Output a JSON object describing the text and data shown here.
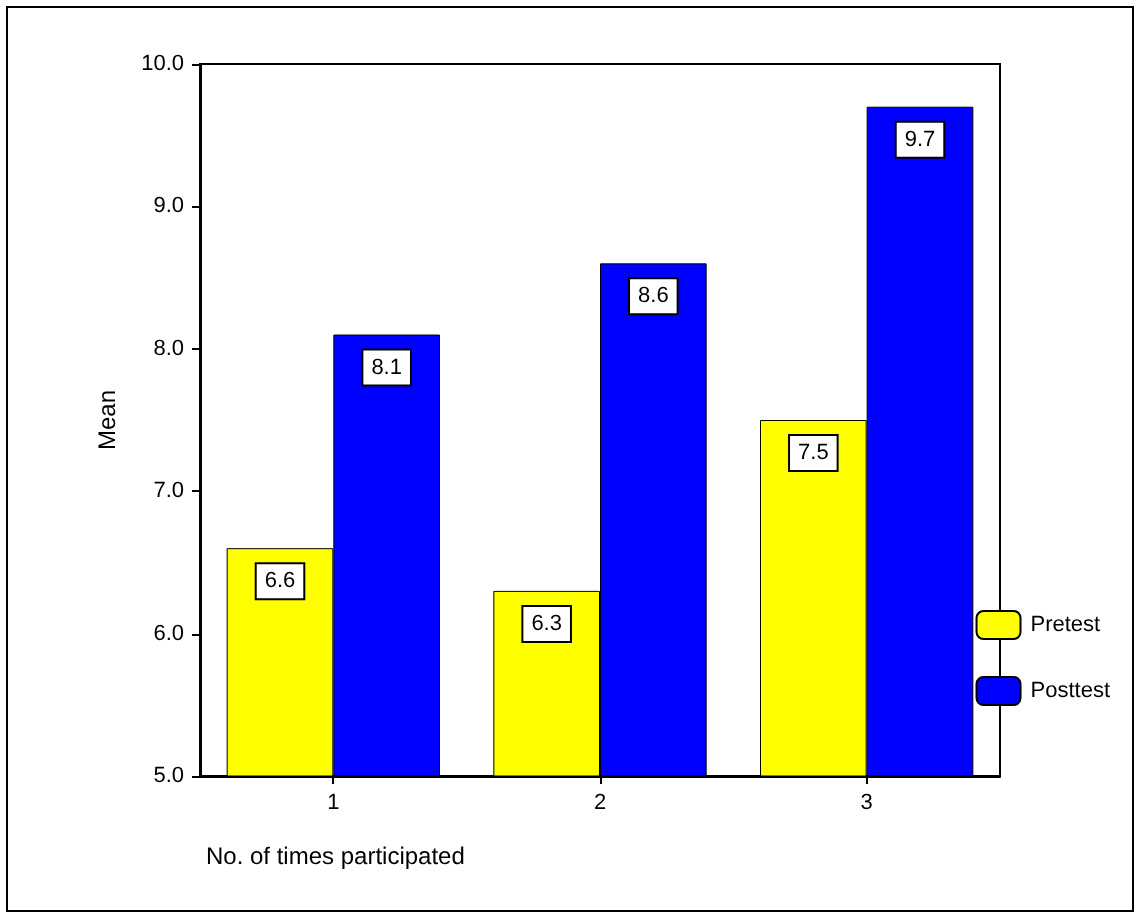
{
  "chart_data": {
    "type": "bar",
    "xlabel": "No. of times participated",
    "ylabel": "Mean",
    "categories": [
      "1",
      "2",
      "3"
    ],
    "series": [
      {
        "name": "Pretest",
        "color": "#ffff00",
        "values": [
          6.6,
          6.3,
          7.5
        ]
      },
      {
        "name": "Posttest",
        "color": "#0000ff",
        "values": [
          8.1,
          8.6,
          9.7
        ]
      }
    ],
    "ylim": [
      5,
      10
    ],
    "yticks": [
      {
        "value": 5,
        "label": "5.0"
      },
      {
        "value": 6,
        "label": "6.0"
      },
      {
        "value": 7,
        "label": "7.0"
      },
      {
        "value": 8,
        "label": "8.0"
      },
      {
        "value": 9,
        "label": "9.0"
      },
      {
        "value": 10,
        "label": "10.0"
      }
    ],
    "data_labels": true,
    "grid": false,
    "legend": "right"
  }
}
